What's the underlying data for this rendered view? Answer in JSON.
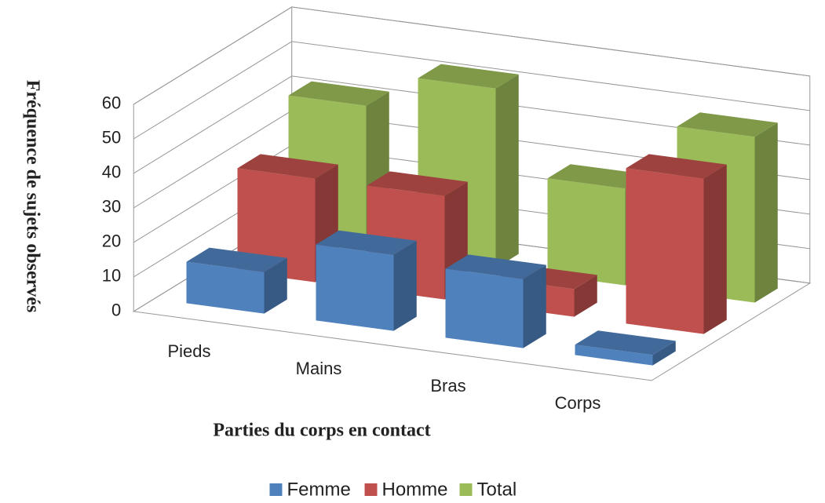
{
  "chart_data": {
    "type": "bar3d",
    "x_label": "Parties du corps en contact",
    "y_label": "Fréquence  de sujets observés",
    "categories": [
      "Pieds",
      "Mains",
      "Bras",
      "Corps"
    ],
    "series": [
      {
        "name": "Femme",
        "color": "#4f81bd",
        "values": [
          12,
          22,
          20,
          3
        ]
      },
      {
        "name": "Homme",
        "color": "#c0504d",
        "values": [
          30,
          30,
          8,
          45
        ]
      },
      {
        "name": "Total",
        "color": "#9bbb59",
        "values": [
          42,
          52,
          28,
          48
        ]
      }
    ],
    "ylim": [
      0,
      60
    ],
    "yticks": [
      0,
      10,
      20,
      30,
      40,
      50,
      60
    ],
    "grid": true,
    "legend": "bottom"
  }
}
